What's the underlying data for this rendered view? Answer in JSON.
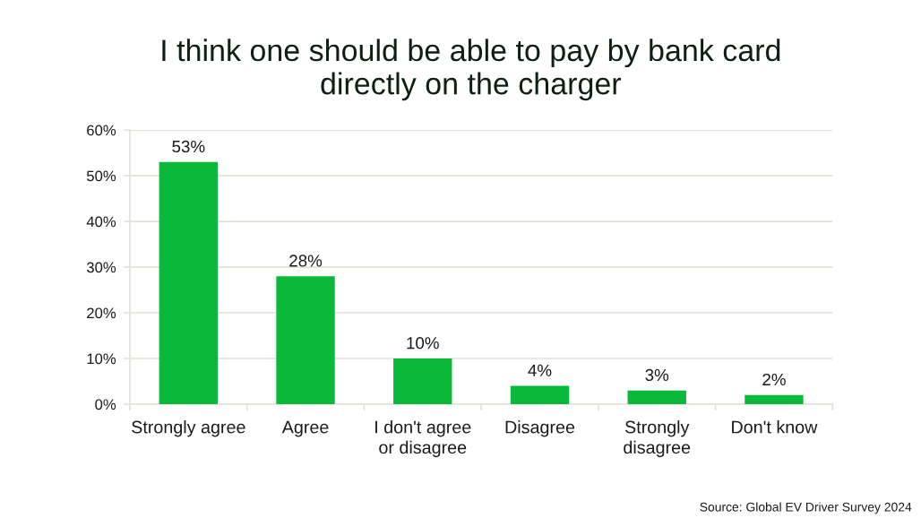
{
  "chart_data": {
    "type": "bar",
    "title": "I think one should be able to pay by bank card\ndirectly on the charger",
    "categories": [
      "Strongly agree",
      "Agree",
      "I don't agree\nor disagree",
      "Disagree",
      "Strongly\ndisagree",
      "Don't know"
    ],
    "values": [
      53,
      28,
      10,
      4,
      3,
      2
    ],
    "value_labels": [
      "53%",
      "28%",
      "10%",
      "4%",
      "3%",
      "2%"
    ],
    "color": "#0bb93a",
    "ylim": [
      0,
      60
    ],
    "yticks": [
      {
        "value": 0,
        "label": "0%"
      },
      {
        "value": 10,
        "label": "10%"
      },
      {
        "value": 20,
        "label": "20%"
      },
      {
        "value": 30,
        "label": "30%"
      },
      {
        "value": 40,
        "label": "40%"
      },
      {
        "value": 50,
        "label": "50%"
      },
      {
        "value": 60,
        "label": "60%"
      }
    ],
    "grid": "y",
    "annotations": [
      "Source: Global EV Driver Survey 2024"
    ]
  }
}
